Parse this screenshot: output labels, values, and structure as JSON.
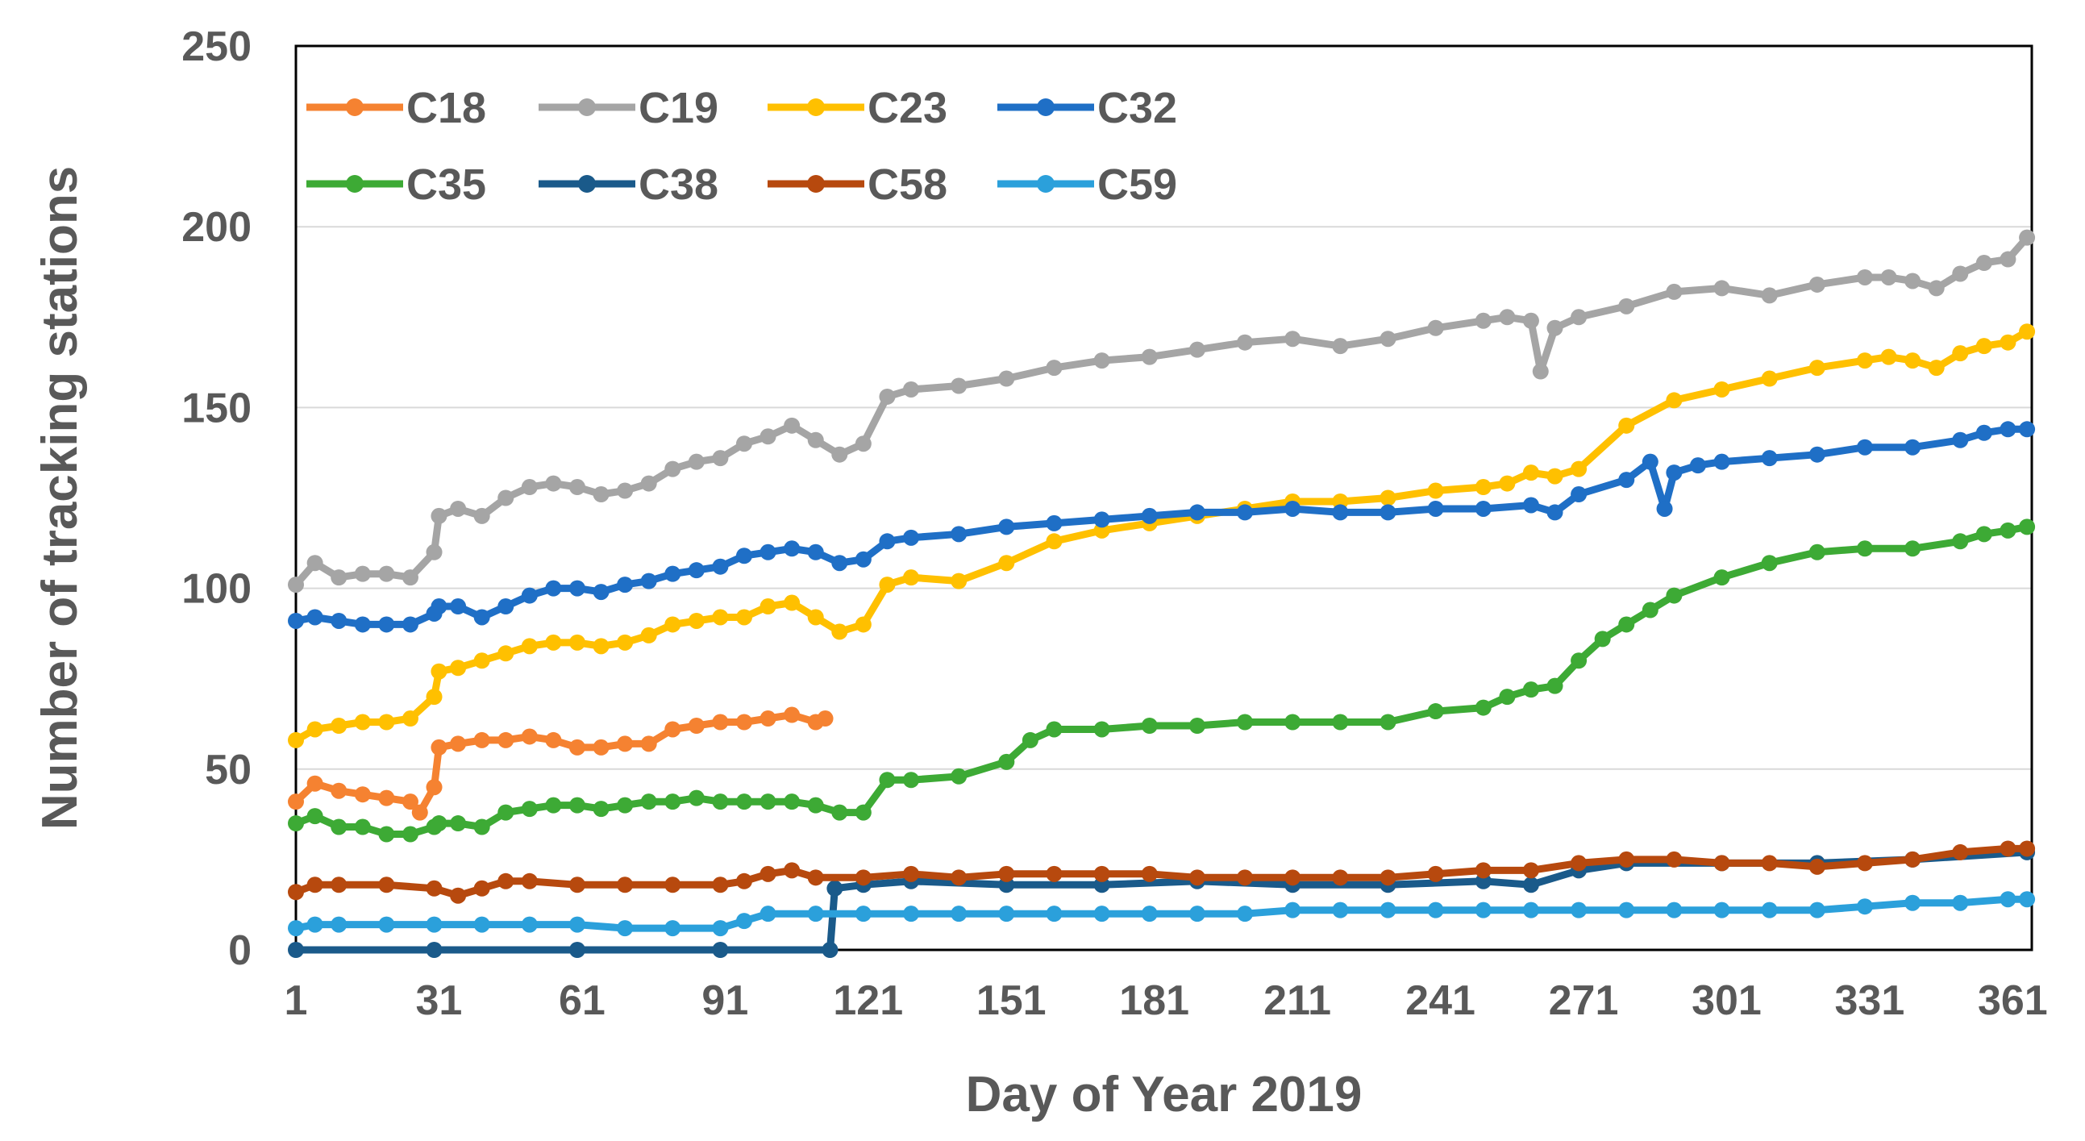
{
  "chart_data": {
    "type": "line",
    "title": "",
    "xlabel": "Day of Year 2019",
    "ylabel": "Number of tracking stations",
    "xlim": [
      1,
      365
    ],
    "ylim": [
      0,
      250
    ],
    "x_ticks": [
      1,
      31,
      61,
      91,
      121,
      151,
      181,
      211,
      241,
      271,
      301,
      331,
      361
    ],
    "x_tick_labels": [
      "1",
      "31",
      "61",
      "91",
      "121",
      "151",
      "181",
      "211",
      "241",
      "271",
      "301",
      "331",
      "361"
    ],
    "y_ticks": [
      0,
      50,
      100,
      150,
      200,
      250
    ],
    "y_tick_labels": [
      "0",
      "50",
      "100",
      "150",
      "200",
      "250"
    ],
    "grid": true,
    "legend_position": "top-left",
    "series": [
      {
        "name": "C18",
        "color": "#F58231",
        "x": [
          1,
          5,
          10,
          15,
          20,
          25,
          27,
          30,
          31,
          35,
          40,
          45,
          50,
          55,
          60,
          65,
          70,
          75,
          80,
          85,
          90,
          95,
          100,
          105,
          110,
          112
        ],
        "y": [
          41,
          46,
          44,
          43,
          42,
          41,
          38,
          45,
          56,
          57,
          58,
          58,
          59,
          58,
          56,
          56,
          57,
          57,
          61,
          62,
          63,
          63,
          64,
          65,
          63,
          64
        ]
      },
      {
        "name": "C19",
        "color": "#A5A5A5",
        "x": [
          1,
          5,
          10,
          15,
          20,
          25,
          30,
          31,
          35,
          40,
          45,
          50,
          55,
          60,
          65,
          70,
          75,
          80,
          85,
          90,
          95,
          100,
          105,
          110,
          115,
          120,
          125,
          130,
          140,
          150,
          160,
          170,
          180,
          190,
          200,
          210,
          220,
          230,
          240,
          250,
          255,
          260,
          262,
          265,
          270,
          280,
          290,
          300,
          310,
          320,
          330,
          335,
          340,
          345,
          350,
          355,
          360,
          364
        ],
        "y": [
          101,
          107,
          103,
          104,
          104,
          103,
          110,
          120,
          122,
          120,
          125,
          128,
          129,
          128,
          126,
          127,
          129,
          133,
          135,
          136,
          140,
          142,
          145,
          141,
          137,
          140,
          153,
          155,
          156,
          158,
          161,
          163,
          164,
          166,
          168,
          169,
          167,
          169,
          172,
          174,
          175,
          174,
          160,
          172,
          175,
          178,
          182,
          183,
          181,
          184,
          186,
          186,
          185,
          183,
          187,
          190,
          191,
          197
        ]
      },
      {
        "name": "C23",
        "color": "#FFC000",
        "x": [
          1,
          5,
          10,
          15,
          20,
          25,
          30,
          31,
          35,
          40,
          45,
          50,
          55,
          60,
          65,
          70,
          75,
          80,
          85,
          90,
          95,
          100,
          105,
          110,
          115,
          120,
          125,
          130,
          140,
          150,
          160,
          170,
          180,
          190,
          200,
          210,
          220,
          230,
          240,
          250,
          255,
          260,
          265,
          270,
          280,
          290,
          300,
          310,
          320,
          330,
          335,
          340,
          345,
          350,
          355,
          360,
          364
        ],
        "y": [
          58,
          61,
          62,
          63,
          63,
          64,
          70,
          77,
          78,
          80,
          82,
          84,
          85,
          85,
          84,
          85,
          87,
          90,
          91,
          92,
          92,
          95,
          96,
          92,
          88,
          90,
          101,
          103,
          102,
          107,
          113,
          116,
          118,
          120,
          122,
          124,
          124,
          125,
          127,
          128,
          129,
          132,
          131,
          133,
          145,
          152,
          155,
          158,
          161,
          163,
          164,
          163,
          161,
          165,
          167,
          168,
          171
        ]
      },
      {
        "name": "C32",
        "color": "#1F6FC6",
        "x": [
          1,
          5,
          10,
          15,
          20,
          25,
          30,
          31,
          35,
          40,
          45,
          50,
          55,
          60,
          65,
          70,
          75,
          80,
          85,
          90,
          95,
          100,
          105,
          110,
          115,
          120,
          125,
          130,
          140,
          150,
          160,
          170,
          180,
          190,
          200,
          210,
          220,
          230,
          240,
          250,
          260,
          265,
          270,
          280,
          285,
          288,
          290,
          295,
          300,
          310,
          320,
          330,
          340,
          350,
          355,
          360,
          364
        ],
        "y": [
          91,
          92,
          91,
          90,
          90,
          90,
          93,
          95,
          95,
          92,
          95,
          98,
          100,
          100,
          99,
          101,
          102,
          104,
          105,
          106,
          109,
          110,
          111,
          110,
          107,
          108,
          113,
          114,
          115,
          117,
          118,
          119,
          120,
          121,
          121,
          122,
          121,
          121,
          122,
          122,
          123,
          121,
          126,
          130,
          135,
          122,
          132,
          134,
          135,
          136,
          137,
          139,
          139,
          141,
          143,
          144,
          144
        ]
      },
      {
        "name": "C35",
        "color": "#3DAA35",
        "x": [
          1,
          5,
          10,
          15,
          20,
          25,
          30,
          31,
          35,
          40,
          45,
          50,
          55,
          60,
          65,
          70,
          75,
          80,
          85,
          90,
          95,
          100,
          105,
          110,
          115,
          120,
          125,
          130,
          140,
          150,
          155,
          160,
          170,
          180,
          190,
          200,
          210,
          220,
          230,
          240,
          250,
          255,
          260,
          265,
          270,
          275,
          280,
          285,
          290,
          300,
          310,
          320,
          330,
          340,
          350,
          355,
          360,
          364
        ],
        "y": [
          35,
          37,
          34,
          34,
          32,
          32,
          34,
          35,
          35,
          34,
          38,
          39,
          40,
          40,
          39,
          40,
          41,
          41,
          42,
          41,
          41,
          41,
          41,
          40,
          38,
          38,
          47,
          47,
          48,
          52,
          58,
          61,
          61,
          62,
          62,
          63,
          63,
          63,
          63,
          66,
          67,
          70,
          72,
          73,
          80,
          86,
          90,
          94,
          98,
          103,
          107,
          110,
          111,
          111,
          113,
          115,
          116,
          117
        ]
      },
      {
        "name": "C38",
        "color": "#1A5A8A",
        "x": [
          1,
          30,
          60,
          90,
          113,
          114,
          120,
          130,
          150,
          170,
          190,
          210,
          230,
          250,
          260,
          270,
          280,
          300,
          320,
          340,
          364
        ],
        "y": [
          0,
          0,
          0,
          0,
          0,
          17,
          18,
          19,
          18,
          18,
          19,
          18,
          18,
          19,
          18,
          22,
          24,
          24,
          24,
          25,
          27
        ]
      },
      {
        "name": "C58",
        "color": "#B7490E",
        "x": [
          1,
          5,
          10,
          20,
          30,
          35,
          40,
          45,
          50,
          60,
          70,
          80,
          90,
          95,
          100,
          105,
          110,
          120,
          130,
          140,
          150,
          160,
          170,
          180,
          190,
          200,
          210,
          220,
          230,
          240,
          250,
          260,
          270,
          280,
          290,
          300,
          310,
          320,
          330,
          340,
          350,
          360,
          364
        ],
        "y": [
          16,
          18,
          18,
          18,
          17,
          15,
          17,
          19,
          19,
          18,
          18,
          18,
          18,
          19,
          21,
          22,
          20,
          20,
          21,
          20,
          21,
          21,
          21,
          21,
          20,
          20,
          20,
          20,
          20,
          21,
          22,
          22,
          24,
          25,
          25,
          24,
          24,
          23,
          24,
          25,
          27,
          28,
          28
        ]
      },
      {
        "name": "C59",
        "color": "#2BA0DB",
        "x": [
          1,
          5,
          10,
          20,
          30,
          40,
          50,
          60,
          70,
          80,
          90,
          95,
          100,
          110,
          120,
          130,
          140,
          150,
          160,
          170,
          180,
          190,
          200,
          210,
          220,
          230,
          240,
          250,
          260,
          270,
          280,
          290,
          300,
          310,
          320,
          330,
          340,
          350,
          360,
          364
        ],
        "y": [
          6,
          7,
          7,
          7,
          7,
          7,
          7,
          7,
          6,
          6,
          6,
          8,
          10,
          10,
          10,
          10,
          10,
          10,
          10,
          10,
          10,
          10,
          10,
          11,
          11,
          11,
          11,
          11,
          11,
          11,
          11,
          11,
          11,
          11,
          11,
          12,
          13,
          13,
          14,
          14
        ]
      }
    ]
  }
}
